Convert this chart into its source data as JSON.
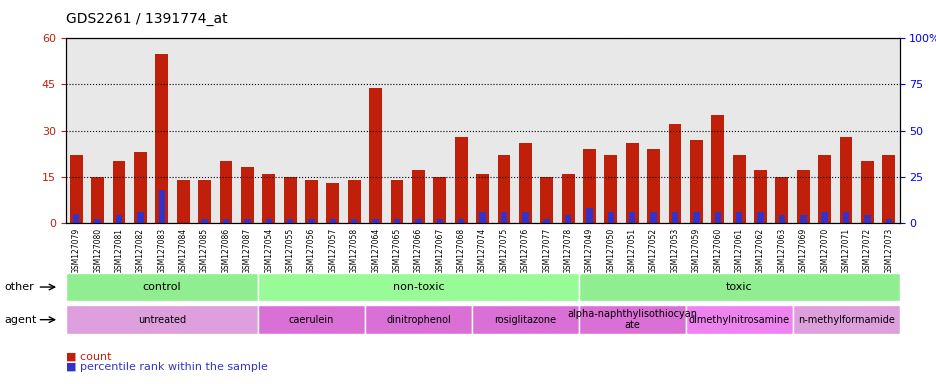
{
  "title": "GDS2261 / 1391774_at",
  "samples": [
    "GSM127079",
    "GSM127080",
    "GSM127081",
    "GSM127082",
    "GSM127083",
    "GSM127084",
    "GSM127085",
    "GSM127086",
    "GSM127087",
    "GSM127054",
    "GSM127055",
    "GSM127056",
    "GSM127057",
    "GSM127058",
    "GSM127064",
    "GSM127065",
    "GSM127066",
    "GSM127067",
    "GSM127068",
    "GSM127074",
    "GSM127075",
    "GSM127076",
    "GSM127077",
    "GSM127078",
    "GSM127049",
    "GSM127050",
    "GSM127051",
    "GSM127052",
    "GSM127053",
    "GSM127059",
    "GSM127060",
    "GSM127061",
    "GSM127062",
    "GSM127063",
    "GSM127069",
    "GSM127070",
    "GSM127071",
    "GSM127072",
    "GSM127073"
  ],
  "count_values": [
    22,
    15,
    20,
    23,
    55,
    14,
    14,
    20,
    18,
    16,
    15,
    14,
    13,
    14,
    44,
    14,
    17,
    15,
    28,
    16,
    22,
    26,
    15,
    16,
    24,
    22,
    26,
    24,
    32,
    27,
    35,
    22,
    17,
    15,
    17,
    22,
    28,
    20,
    22
  ],
  "percentile_values": [
    5,
    2,
    4,
    6,
    18,
    0,
    2,
    2,
    2,
    2,
    2,
    2,
    2,
    2,
    2,
    2,
    2,
    2,
    2,
    6,
    6,
    6,
    2,
    4,
    8,
    6,
    6,
    6,
    6,
    6,
    6,
    6,
    6,
    4,
    4,
    6,
    6,
    4,
    2
  ],
  "bar_color": "#C0200A",
  "percentile_color": "#3333CC",
  "ylim_left": [
    0,
    60
  ],
  "ylim_right": [
    0,
    100
  ],
  "yticks_left": [
    0,
    15,
    30,
    45,
    60
  ],
  "yticks_right": [
    0,
    25,
    50,
    75,
    100
  ],
  "groups": {
    "other": [
      {
        "label": "control",
        "start": 0,
        "end": 9,
        "color": "#90EE90"
      },
      {
        "label": "non-toxic",
        "start": 9,
        "end": 24,
        "color": "#98FB98"
      },
      {
        "label": "toxic",
        "start": 24,
        "end": 39,
        "color": "#90EE90"
      }
    ],
    "agent": [
      {
        "label": "untreated",
        "start": 0,
        "end": 9,
        "color": "#DDA0DD"
      },
      {
        "label": "caerulein",
        "start": 9,
        "end": 14,
        "color": "#DA70D6"
      },
      {
        "label": "dinitrophenol",
        "start": 14,
        "end": 19,
        "color": "#DA70D6"
      },
      {
        "label": "rosiglitazone",
        "start": 19,
        "end": 24,
        "color": "#DA70D6"
      },
      {
        "label": "alpha-naphthylisothiocyan\nate",
        "start": 24,
        "end": 29,
        "color": "#DA70D6"
      },
      {
        "label": "dimethylnitrosamine",
        "start": 29,
        "end": 34,
        "color": "#EE82EE"
      },
      {
        "label": "n-methylformamide",
        "start": 34,
        "end": 39,
        "color": "#DDA0DD"
      }
    ]
  },
  "legend": [
    {
      "label": "count",
      "color": "#C0200A"
    },
    {
      "label": "percentile rank within the sample",
      "color": "#3333CC"
    }
  ]
}
